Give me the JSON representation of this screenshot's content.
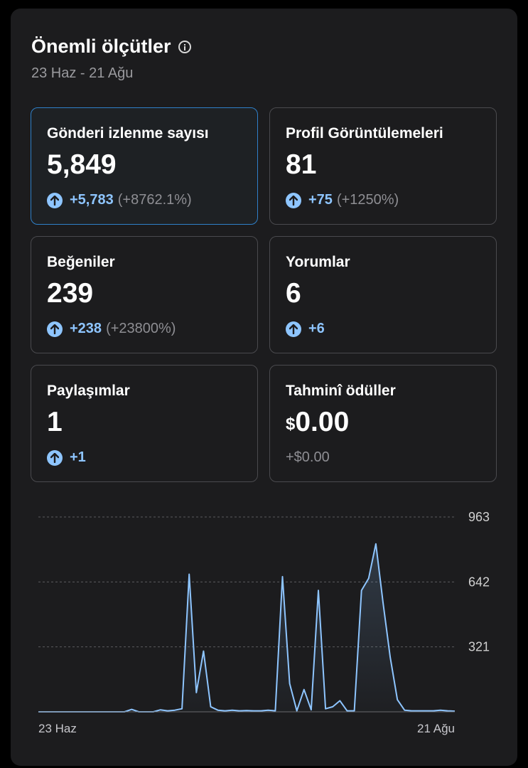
{
  "header": {
    "title": "Önemli ölçütler",
    "date_range": "23 Haz - 21 Ağu"
  },
  "cards": [
    {
      "label": "Gönderi izlenme sayısı",
      "value": "5,849",
      "delta": "+5,783",
      "pct": "(+8762.1%)",
      "selected": true
    },
    {
      "label": "Profil Görüntülemeleri",
      "value": "81",
      "delta": "+75",
      "pct": "(+1250%)"
    },
    {
      "label": "Beğeniler",
      "value": "239",
      "delta": "+238",
      "pct": "(+23800%)"
    },
    {
      "label": "Yorumlar",
      "value": "6",
      "delta": "+6",
      "pct": ""
    },
    {
      "label": "Paylaşımlar",
      "value": "1",
      "delta": "+1",
      "pct": ""
    },
    {
      "label": "Tahminî ödüller",
      "currency": "$",
      "value": "0.00",
      "delta": "+$0.00",
      "pct": ""
    }
  ],
  "chart_data": {
    "type": "area",
    "ylim": [
      0,
      963
    ],
    "yticks": [
      "963",
      "642",
      "321"
    ],
    "x_start_label": "23 Haz",
    "x_end_label": "21 Ağu",
    "values": [
      0,
      0,
      0,
      0,
      0,
      0,
      0,
      0,
      0,
      0,
      0,
      0,
      0,
      12,
      0,
      0,
      0,
      10,
      5,
      8,
      15,
      680,
      95,
      300,
      25,
      8,
      5,
      8,
      5,
      6,
      5,
      5,
      8,
      5,
      668,
      140,
      5,
      110,
      10,
      600,
      15,
      25,
      55,
      5,
      5,
      600,
      660,
      830,
      540,
      270,
      60,
      8,
      5,
      5,
      5,
      5,
      8,
      5,
      3
    ],
    "colors": {
      "line": "#8ec5ff",
      "grid": "#5a5a5e"
    }
  }
}
